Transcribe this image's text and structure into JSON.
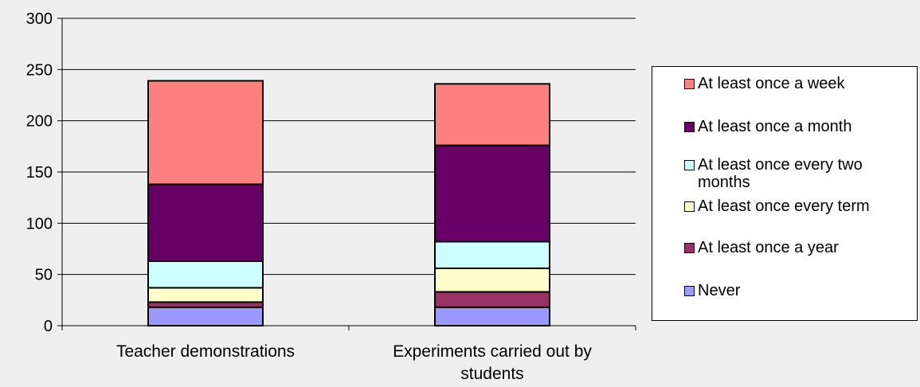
{
  "chart_data": {
    "type": "bar",
    "stacked": true,
    "categories": [
      "Teacher demonstrations",
      "Experiments carried out by students"
    ],
    "series": [
      {
        "name": "Never",
        "color": "#9999ff",
        "values": [
          18,
          18
        ]
      },
      {
        "name": "At least once a year",
        "color": "#993366",
        "values": [
          5,
          15
        ]
      },
      {
        "name": "At least once every term",
        "color": "#ffffcc",
        "values": [
          14,
          23
        ]
      },
      {
        "name": "At least once every two months",
        "color": "#ccffff",
        "values": [
          26,
          26
        ]
      },
      {
        "name": "At least once a month",
        "color": "#660066",
        "values": [
          75,
          94
        ]
      },
      {
        "name": "At least once a week",
        "color": "#ff8080",
        "values": [
          101,
          60
        ]
      }
    ],
    "yticks": [
      0,
      50,
      100,
      150,
      200,
      250,
      300
    ],
    "ylim": [
      0,
      300
    ],
    "grid": true,
    "legend_position": "right"
  }
}
